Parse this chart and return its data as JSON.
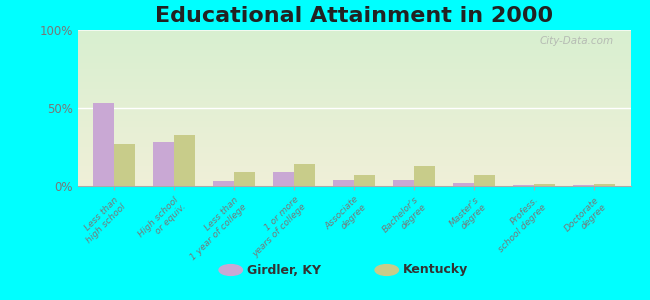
{
  "title": "Educational Attainment in 2000",
  "categories": [
    "Less than\nhigh school",
    "High school\nor equiv.",
    "Less than\n1 year of college",
    "1 or more\nyears of college",
    "Associate\ndegree",
    "Bachelor's\ndegree",
    "Master's\ndegree",
    "Profess.\nschool degree",
    "Doctorate\ndegree"
  ],
  "girdler_values": [
    53,
    28,
    3,
    9,
    4,
    4,
    2,
    0.5,
    0.5
  ],
  "kentucky_values": [
    27,
    33,
    9,
    14,
    7,
    13,
    7,
    1,
    1
  ],
  "girdler_color": "#c9a8d4",
  "kentucky_color": "#c8cc8a",
  "bg_color_top": "#d8efd0",
  "bg_color_bottom": "#f0f0d8",
  "outer_bg": "#00ffff",
  "ylim": [
    0,
    100
  ],
  "yticks": [
    0,
    50,
    100
  ],
  "ytick_labels": [
    "0%",
    "50%",
    "100%"
  ],
  "watermark": "City-Data.com",
  "legend_labels": [
    "Girdler, KY",
    "Kentucky"
  ],
  "title_fontsize": 16,
  "bar_width": 0.35,
  "tick_label_color": "#777777",
  "axis_label_color": "#777777"
}
